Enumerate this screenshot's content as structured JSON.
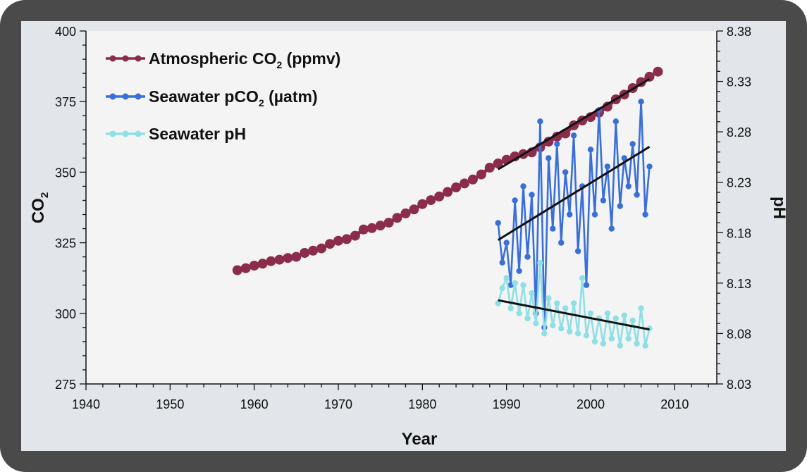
{
  "chart_data": {
    "type": "line",
    "xlabel": "Year",
    "ylabel_left": "CO",
    "ylabel_left_sub": "2",
    "ylabel_right": "pH",
    "xlim": [
      1940,
      2015
    ],
    "ylim_left": [
      275,
      400
    ],
    "ylim_right": [
      8.03,
      8.38
    ],
    "x_ticks": [
      "1940",
      "1950",
      "1960",
      "1970",
      "1980",
      "1990",
      "2000",
      "2010"
    ],
    "y_left_ticks": [
      "275",
      "300",
      "325",
      "350",
      "375",
      "400"
    ],
    "y_right_ticks": [
      "8.03",
      "8.08",
      "8.13",
      "8.18",
      "8.23",
      "8.28",
      "8.33",
      "8.38"
    ],
    "legend_position": "top-left",
    "series": [
      {
        "name": "Atmospheric CO",
        "name_sub": "2",
        "name_suffix": " (ppmv)",
        "axis": "left",
        "color": "#8b2c4a",
        "x": [
          1958,
          1959,
          1960,
          1961,
          1962,
          1963,
          1964,
          1965,
          1966,
          1967,
          1968,
          1969,
          1970,
          1971,
          1972,
          1973,
          1974,
          1975,
          1976,
          1977,
          1978,
          1979,
          1980,
          1981,
          1982,
          1983,
          1984,
          1985,
          1986,
          1987,
          1988,
          1989,
          1990,
          1991,
          1992,
          1993,
          1994,
          1995,
          1996,
          1997,
          1998,
          1999,
          2000,
          2001,
          2002,
          2003,
          2004,
          2005,
          2006,
          2007,
          2008
        ],
        "y": [
          315.3,
          316.0,
          316.9,
          317.6,
          318.5,
          319.0,
          319.6,
          320.0,
          321.4,
          322.2,
          323.0,
          324.6,
          325.7,
          326.3,
          327.5,
          329.7,
          330.2,
          331.1,
          332.1,
          333.8,
          335.4,
          336.8,
          338.7,
          340.1,
          341.4,
          343.0,
          344.6,
          346.0,
          347.4,
          349.2,
          351.6,
          353.1,
          354.4,
          355.6,
          356.4,
          357.0,
          358.8,
          360.8,
          362.6,
          363.7,
          366.6,
          368.3,
          369.5,
          371.1,
          373.2,
          375.8,
          377.5,
          379.8,
          381.9,
          383.8,
          385.6
        ]
      },
      {
        "name": "Seawater pCO",
        "name_sub": "2",
        "name_suffix": " (µatm)",
        "axis": "left",
        "color": "#3a6fd8",
        "x": [
          1989.0,
          1989.5,
          1990.0,
          1990.5,
          1991.0,
          1991.5,
          1992.0,
          1992.5,
          1993.0,
          1993.5,
          1994.0,
          1994.5,
          1995.0,
          1995.5,
          1996.0,
          1996.5,
          1997.0,
          1997.5,
          1998.0,
          1998.5,
          1999.0,
          1999.5,
          2000.0,
          2000.5,
          2001.0,
          2001.5,
          2002.0,
          2002.5,
          2003.0,
          2003.5,
          2004.0,
          2004.5,
          2005.0,
          2005.5,
          2006.0,
          2006.5,
          2007.0
        ],
        "y": [
          332,
          318,
          325,
          310,
          340,
          315,
          345,
          320,
          342,
          300,
          368,
          295,
          355,
          330,
          360,
          325,
          350,
          335,
          363,
          322,
          345,
          310,
          358,
          335,
          372,
          340,
          352,
          330,
          368,
          338,
          355,
          345,
          360,
          342,
          375,
          335,
          352
        ]
      },
      {
        "name": "Seawater pH",
        "axis": "right",
        "color": "#8fe0e4",
        "x": [
          1989.0,
          1989.5,
          1990.0,
          1990.5,
          1991.0,
          1991.5,
          1992.0,
          1992.5,
          1993.0,
          1993.5,
          1994.0,
          1994.5,
          1995.0,
          1995.5,
          1996.0,
          1996.5,
          1997.0,
          1997.5,
          1998.0,
          1998.5,
          1999.0,
          1999.5,
          2000.0,
          2000.5,
          2001.0,
          2001.5,
          2002.0,
          2002.5,
          2003.0,
          2003.5,
          2004.0,
          2004.5,
          2005.0,
          2005.5,
          2006.0,
          2006.5,
          2007.0
        ],
        "y": [
          8.11,
          8.125,
          8.135,
          8.105,
          8.13,
          8.1,
          8.128,
          8.095,
          8.12,
          8.09,
          8.15,
          8.08,
          8.115,
          8.088,
          8.11,
          8.085,
          8.105,
          8.082,
          8.11,
          8.08,
          8.135,
          8.078,
          8.1,
          8.072,
          8.095,
          8.07,
          8.1,
          8.075,
          8.095,
          8.068,
          8.098,
          8.075,
          8.093,
          8.07,
          8.105,
          8.068,
          8.085
        ]
      }
    ],
    "trend_lines": [
      {
        "axis": "left",
        "x": [
          1989,
          2007
        ],
        "y": [
          351,
          383
        ]
      },
      {
        "axis": "left",
        "x": [
          1989,
          2007
        ],
        "y": [
          326,
          359
        ]
      },
      {
        "axis": "right",
        "x": [
          1989,
          2007
        ],
        "y": [
          8.113,
          8.084
        ]
      }
    ]
  }
}
